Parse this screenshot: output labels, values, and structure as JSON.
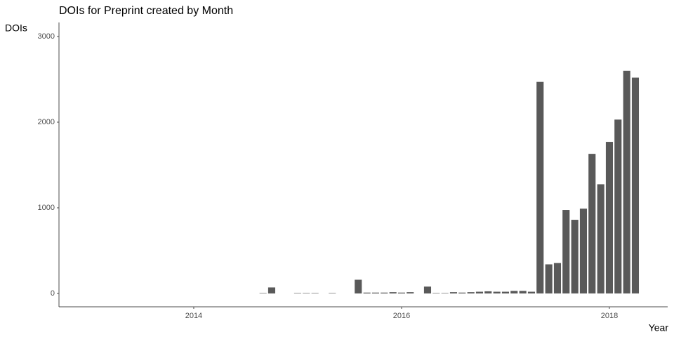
{
  "chart_data": {
    "type": "bar",
    "title": "DOIs for Preprint created by Month",
    "y_label": "DOIs",
    "x_label": "Year",
    "color": "#595959",
    "x": [
      2014.667,
      2014.75,
      2015.0,
      2015.083,
      2015.167,
      2015.333,
      2015.583,
      2015.667,
      2015.75,
      2015.833,
      2015.917,
      2016.0,
      2016.083,
      2016.25,
      2016.333,
      2016.417,
      2016.5,
      2016.583,
      2016.667,
      2016.75,
      2016.833,
      2016.917,
      2017.0,
      2017.083,
      2017.167,
      2017.25,
      2017.333,
      2017.417,
      2017.5,
      2017.583,
      2017.667,
      2017.75,
      2017.833,
      2017.917,
      2018.0,
      2018.083,
      2018.167,
      2018.25
    ],
    "values": [
      5,
      70,
      5,
      5,
      5,
      5,
      160,
      10,
      10,
      10,
      15,
      10,
      15,
      80,
      5,
      5,
      15,
      10,
      15,
      20,
      25,
      20,
      20,
      30,
      30,
      20,
      2470,
      340,
      355,
      975,
      860,
      990,
      1630,
      1275,
      1770,
      2030,
      2600,
      2520
    ],
    "xlim": [
      2012.703,
      2018.561
    ],
    "xticks": [
      2014,
      2016,
      2018
    ],
    "ylim": [
      -156,
      3164
    ],
    "yticks": [
      0,
      1000,
      2000,
      3000
    ],
    "grid": false
  }
}
